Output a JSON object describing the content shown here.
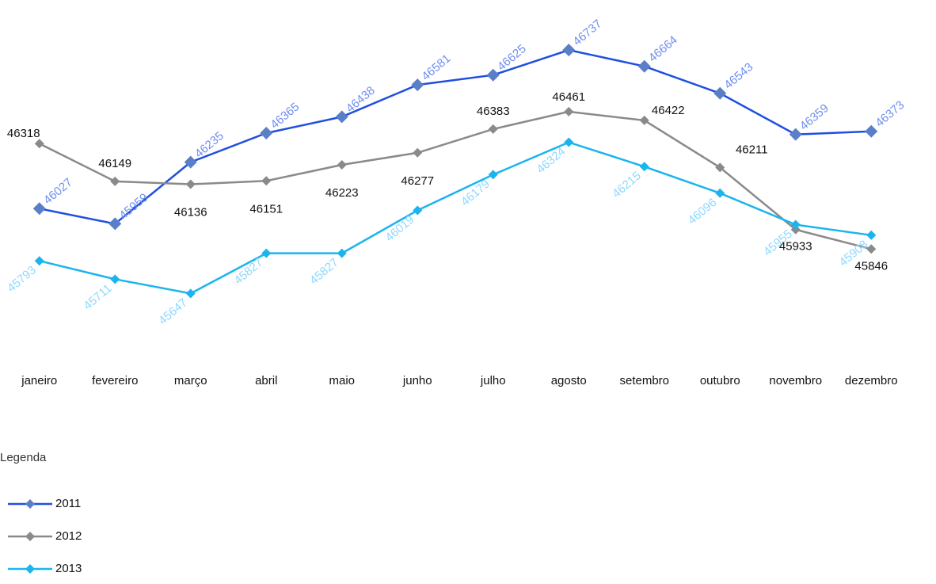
{
  "chart_data": {
    "type": "line",
    "categories": [
      "janeiro",
      "fevereiro",
      "março",
      "abril",
      "maio",
      "junho",
      "julho",
      "agosto",
      "setembro",
      "outubro",
      "novembro",
      "dezembro"
    ],
    "series": [
      {
        "name": "2011",
        "color": "#1f4fe0",
        "marker_color": "#5b7fc7",
        "label_color": "#6f8ff0",
        "values": [
          46027,
          45959,
          46235,
          46365,
          46438,
          46581,
          46625,
          46737,
          46664,
          46543,
          46359,
          46373
        ]
      },
      {
        "name": "2012",
        "color": "#8a8a8a",
        "marker_color": "#8a8a8a",
        "label_color": "#111111",
        "values": [
          46318,
          46149,
          46136,
          46151,
          46223,
          46277,
          46383,
          46461,
          46422,
          46211,
          45933,
          45846
        ]
      },
      {
        "name": "2013",
        "color": "#1bb4ee",
        "marker_color": "#1bb4ee",
        "label_color": "#8fd8ff",
        "values": [
          45793,
          45711,
          45647,
          45827,
          45827,
          46019,
          46179,
          46324,
          46215,
          46096,
          45955,
          45908
        ]
      }
    ],
    "ylim": [
      45400,
      46890
    ],
    "legend_title": "Legenda"
  }
}
